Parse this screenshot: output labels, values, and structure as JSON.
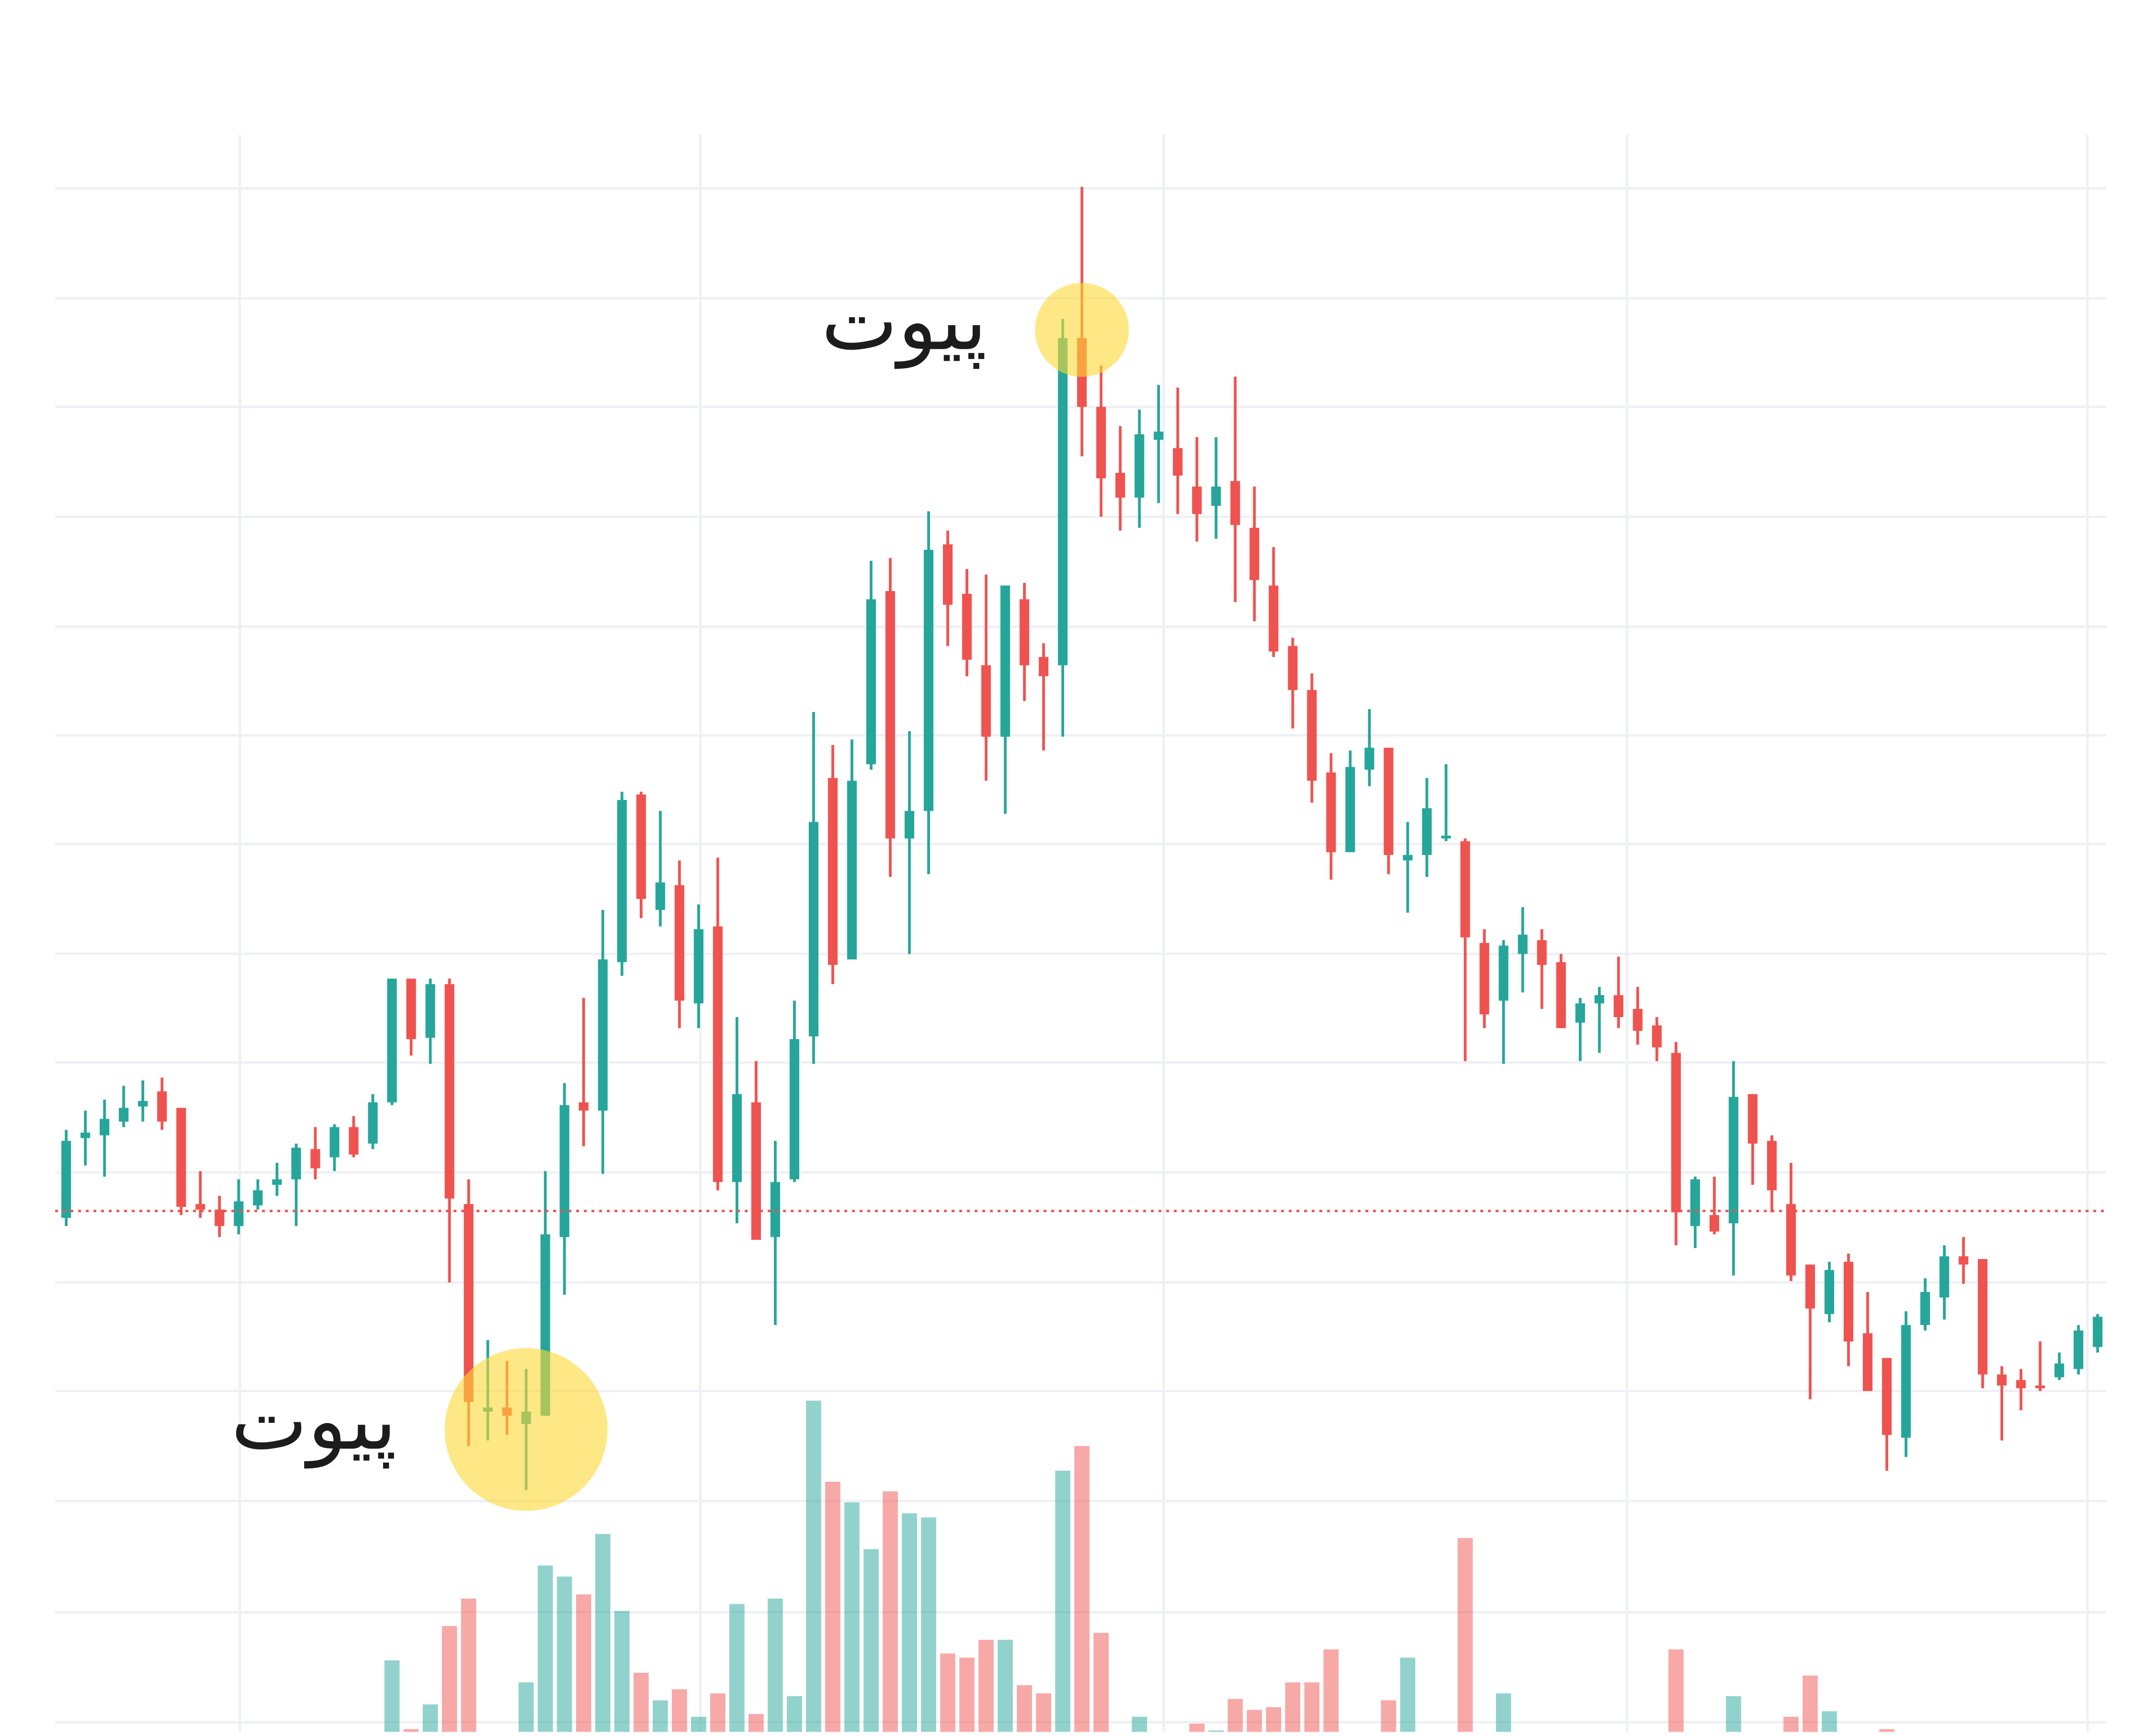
{
  "chart_data": {
    "type": "candlestick",
    "open": [
      374,
      432,
      434,
      444,
      455,
      466,
      454,
      384,
      380,
      368,
      383,
      398,
      402,
      424,
      418,
      440,
      428,
      458,
      548,
      505,
      544,
      384,
      233,
      236,
      224,
      230,
      360,
      458,
      452,
      560,
      682,
      598,
      616,
      530,
      586,
      400,
      458,
      360,
      402,
      506,
      694,
      562,
      704,
      830,
      650,
      670,
      864,
      828,
      776,
      724,
      824,
      782,
      776,
      1014,
      964,
      916,
      898,
      940,
      934,
      906,
      892,
      910,
      876,
      834,
      790,
      758,
      698,
      640,
      700,
      716,
      634,
      638,
      650,
      648,
      574,
      532,
      566,
      576,
      560,
      516,
      530,
      536,
      526,
      514,
      494,
      368,
      376,
      370,
      464,
      430,
      384,
      340,
      304,
      342,
      290,
      272,
      214,
      296,
      316,
      346,
      344,
      260,
      256,
      252,
      258,
      264,
      280
    ],
    "high": [
      438,
      452,
      460,
      470,
      474,
      476,
      454,
      408,
      390,
      402,
      402,
      414,
      428,
      440,
      442,
      448,
      464,
      548,
      548,
      548,
      548,
      402,
      285,
      270,
      264,
      408,
      472,
      534,
      598,
      684,
      684,
      670,
      634,
      602,
      636,
      520,
      488,
      430,
      532,
      742,
      718,
      722,
      852,
      854,
      728,
      888,
      874,
      846,
      842,
      834,
      836,
      792,
      1028,
      1124,
      994,
      950,
      962,
      980,
      978,
      942,
      942,
      986,
      906,
      862,
      796,
      770,
      712,
      714,
      744,
      716,
      662,
      694,
      704,
      650,
      584,
      576,
      600,
      584,
      566,
      534,
      542,
      564,
      542,
      520,
      502,
      404,
      404,
      488,
      464,
      434,
      414,
      340,
      342,
      348,
      320,
      272,
      306,
      330,
      354,
      360,
      344,
      266,
      264,
      284,
      276,
      296,
      304
    ],
    "low": [
      368,
      412,
      404,
      440,
      444,
      438,
      376,
      374,
      360,
      362,
      380,
      390,
      368,
      402,
      408,
      418,
      424,
      456,
      492,
      486,
      327,
      208,
      212,
      216,
      176,
      230,
      318,
      426,
      406,
      550,
      592,
      586,
      512,
      512,
      394,
      370,
      358,
      296,
      400,
      486,
      544,
      562,
      700,
      622,
      566,
      624,
      790,
      768,
      692,
      668,
      750,
      714,
      724,
      928,
      884,
      874,
      876,
      894,
      886,
      866,
      868,
      822,
      808,
      782,
      730,
      676,
      620,
      640,
      688,
      624,
      596,
      622,
      648,
      488,
      512,
      486,
      538,
      526,
      512,
      488,
      494,
      512,
      500,
      488,
      354,
      352,
      362,
      332,
      398,
      378,
      328,
      242,
      298,
      266,
      248,
      190,
      200,
      292,
      300,
      326,
      250,
      212,
      234,
      248,
      256,
      260,
      276
    ],
    "close": [
      430,
      436,
      446,
      454,
      459,
      444,
      382,
      380,
      368,
      386,
      394,
      402,
      425,
      410,
      440,
      420,
      458,
      548,
      504,
      544,
      388,
      240,
      236,
      230,
      233,
      362,
      456,
      452,
      562,
      678,
      606,
      618,
      532,
      584,
      400,
      464,
      358,
      400,
      504,
      662,
      558,
      692,
      824,
      650,
      670,
      860,
      820,
      780,
      724,
      834,
      776,
      768,
      1014,
      964,
      912,
      898,
      944,
      946,
      914,
      886,
      906,
      878,
      838,
      786,
      758,
      692,
      640,
      702,
      716,
      638,
      638,
      672,
      652,
      578,
      522,
      572,
      580,
      558,
      512,
      530,
      536,
      520,
      510,
      498,
      378,
      402,
      364,
      462,
      428,
      394,
      332,
      308,
      336,
      284,
      248,
      216,
      296,
      320,
      346,
      340,
      260,
      252,
      250,
      250,
      268,
      292,
      302
    ],
    "volume": [
      null,
      null,
      null,
      null,
      null,
      null,
      null,
      null,
      null,
      null,
      null,
      null,
      null,
      null,
      null,
      null,
      null,
      52,
      2,
      20,
      77,
      97,
      null,
      null,
      36,
      121,
      113,
      100,
      144,
      88,
      43,
      23,
      31,
      11,
      28,
      93,
      13,
      97,
      26,
      241,
      182,
      167,
      133,
      175,
      159,
      156,
      57,
      54,
      67,
      67,
      34,
      28,
      190,
      208,
      72,
      null,
      11,
      null,
      null,
      6,
      1,
      24,
      16,
      18,
      36,
      36,
      60,
      null,
      null,
      23,
      54,
      null,
      null,
      141,
      null,
      28,
      null,
      null,
      null,
      null,
      null,
      null,
      null,
      null,
      60,
      null,
      null,
      26,
      null,
      null,
      11,
      41,
      15,
      null,
      null,
      2,
      null,
      null,
      null,
      null,
      null,
      null,
      null,
      null,
      null,
      null,
      null
    ],
    "up_color": "#26a69a",
    "down_color": "#ef5350",
    "ylim": [
      0,
      1162
    ],
    "yticks": [
      7,
      87,
      168,
      248,
      327,
      407,
      487,
      566,
      646,
      725,
      804,
      884,
      964,
      1043,
      1123
    ],
    "grid": true,
    "price_line": 379,
    "annotations": [
      {
        "text": "پیوت",
        "index": 53,
        "value": 1020
      },
      {
        "text": "پیوت",
        "index": 24,
        "value": 220
      }
    ]
  }
}
